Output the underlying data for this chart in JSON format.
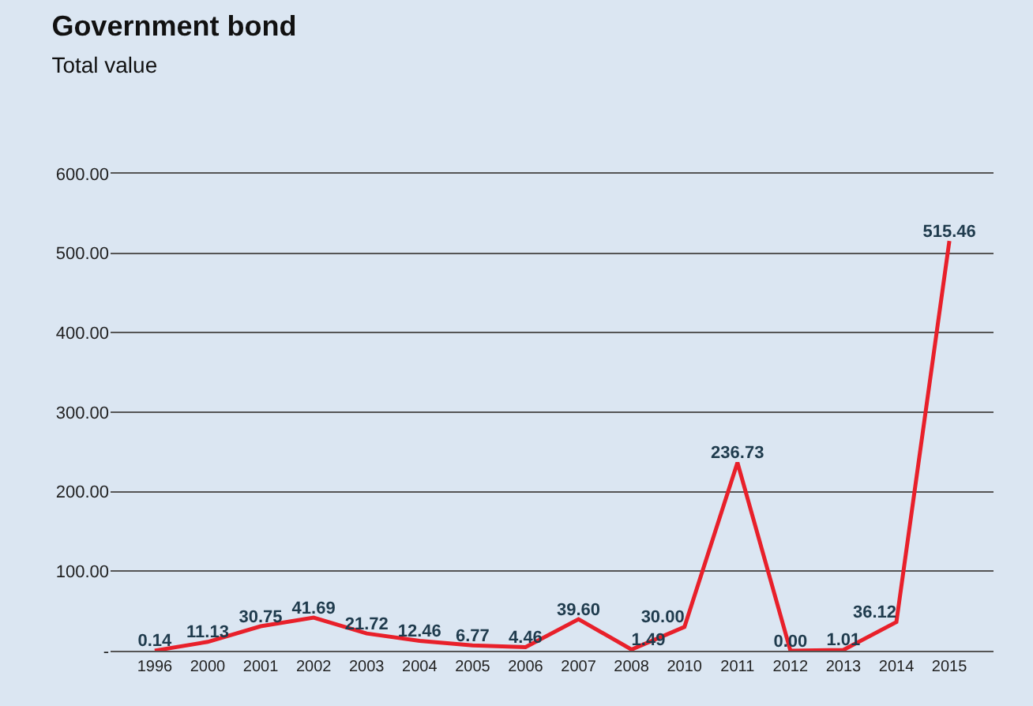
{
  "chart_data": {
    "type": "line",
    "title": "Government bond",
    "subtitle": "Total value",
    "categories": [
      "1996",
      "2000",
      "2001",
      "2002",
      "2003",
      "2004",
      "2005",
      "2006",
      "2007",
      "2008",
      "2010",
      "2011",
      "2012",
      "2013",
      "2014",
      "2015"
    ],
    "series": [
      {
        "color": "#e8202a",
        "values": [
          0.14,
          11.13,
          30.75,
          41.69,
          21.72,
          12.46,
          6.77,
          4.46,
          39.6,
          1.49,
          30.0,
          236.73,
          0.0,
          1.01,
          36.12,
          515.46
        ],
        "value_labels": [
          "0.14",
          "11.13",
          "30.75",
          "41.69",
          "21.72",
          "12.46",
          "6.77",
          "4.46",
          "39.60",
          "1.49",
          "30.00",
          "236.73",
          "0.00",
          "1.01",
          "36.12",
          "515.46"
        ]
      }
    ],
    "ylim": [
      0,
      600
    ],
    "yticks": [
      {
        "value": 0,
        "label": "-"
      },
      {
        "value": 100,
        "label": "100.00"
      },
      {
        "value": 200,
        "label": "200.00"
      },
      {
        "value": 300,
        "label": "300.00"
      },
      {
        "value": 400,
        "label": "400.00"
      },
      {
        "value": 500,
        "label": "500.00"
      },
      {
        "value": 600,
        "label": "600.00"
      }
    ],
    "grid": "y",
    "legend": false,
    "marker": "none",
    "line_style": "solid"
  }
}
